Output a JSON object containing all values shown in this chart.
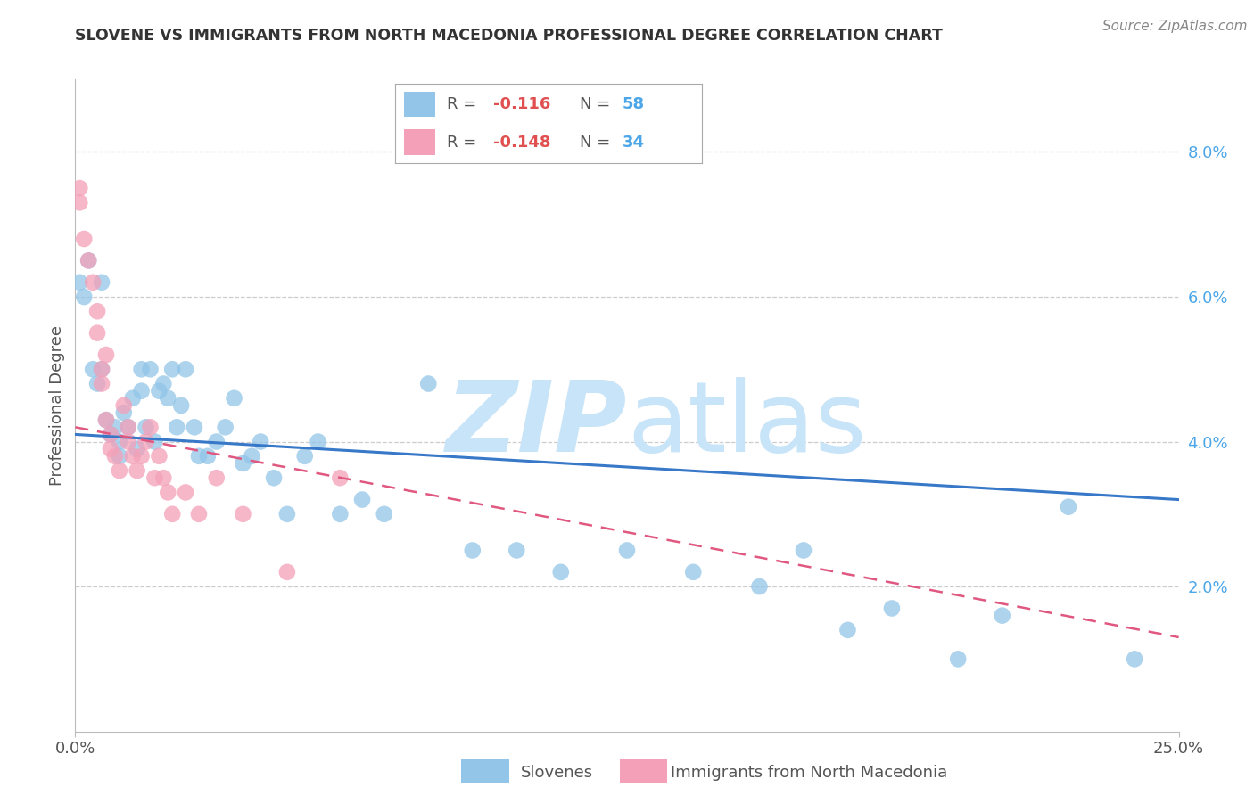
{
  "title": "SLOVENE VS IMMIGRANTS FROM NORTH MACEDONIA PROFESSIONAL DEGREE CORRELATION CHART",
  "source": "Source: ZipAtlas.com",
  "ylabel": "Professional Degree",
  "right_yticks": [
    "8.0%",
    "6.0%",
    "4.0%",
    "2.0%"
  ],
  "right_ytick_vals": [
    0.08,
    0.06,
    0.04,
    0.02
  ],
  "xlim": [
    0.0,
    0.25
  ],
  "ylim": [
    0.0,
    0.09
  ],
  "color_slovene": "#92C5E8",
  "color_immig": "#F4A0B8",
  "color_slovene_line": "#3878C8",
  "color_immig_line": "#E05880",
  "background": "#ffffff",
  "watermark_zip_color": "#C8E4F8",
  "watermark_atlas_color": "#C8E4F8",
  "slovene_x": [
    0.001,
    0.002,
    0.003,
    0.004,
    0.005,
    0.006,
    0.006,
    0.007,
    0.008,
    0.009,
    0.01,
    0.01,
    0.011,
    0.012,
    0.013,
    0.014,
    0.015,
    0.015,
    0.016,
    0.017,
    0.018,
    0.019,
    0.02,
    0.021,
    0.022,
    0.023,
    0.024,
    0.025,
    0.027,
    0.028,
    0.03,
    0.032,
    0.034,
    0.036,
    0.038,
    0.04,
    0.042,
    0.045,
    0.048,
    0.052,
    0.055,
    0.06,
    0.065,
    0.07,
    0.08,
    0.09,
    0.1,
    0.11,
    0.125,
    0.14,
    0.155,
    0.165,
    0.175,
    0.185,
    0.2,
    0.21,
    0.225,
    0.24
  ],
  "slovene_y": [
    0.062,
    0.06,
    0.065,
    0.05,
    0.048,
    0.05,
    0.062,
    0.043,
    0.041,
    0.042,
    0.04,
    0.038,
    0.044,
    0.042,
    0.046,
    0.039,
    0.05,
    0.047,
    0.042,
    0.05,
    0.04,
    0.047,
    0.048,
    0.046,
    0.05,
    0.042,
    0.045,
    0.05,
    0.042,
    0.038,
    0.038,
    0.04,
    0.042,
    0.046,
    0.037,
    0.038,
    0.04,
    0.035,
    0.03,
    0.038,
    0.04,
    0.03,
    0.032,
    0.03,
    0.048,
    0.025,
    0.025,
    0.022,
    0.025,
    0.022,
    0.02,
    0.025,
    0.014,
    0.017,
    0.01,
    0.016,
    0.031,
    0.01
  ],
  "immig_x": [
    0.001,
    0.001,
    0.002,
    0.003,
    0.004,
    0.005,
    0.005,
    0.006,
    0.006,
    0.007,
    0.007,
    0.008,
    0.008,
    0.009,
    0.01,
    0.011,
    0.012,
    0.012,
    0.013,
    0.014,
    0.015,
    0.016,
    0.017,
    0.018,
    0.019,
    0.02,
    0.021,
    0.022,
    0.025,
    0.028,
    0.032,
    0.038,
    0.048,
    0.06
  ],
  "immig_y": [
    0.075,
    0.073,
    0.068,
    0.065,
    0.062,
    0.055,
    0.058,
    0.05,
    0.048,
    0.052,
    0.043,
    0.041,
    0.039,
    0.038,
    0.036,
    0.045,
    0.04,
    0.042,
    0.038,
    0.036,
    0.038,
    0.04,
    0.042,
    0.035,
    0.038,
    0.035,
    0.033,
    0.03,
    0.033,
    0.03,
    0.035,
    0.03,
    0.022,
    0.035
  ]
}
